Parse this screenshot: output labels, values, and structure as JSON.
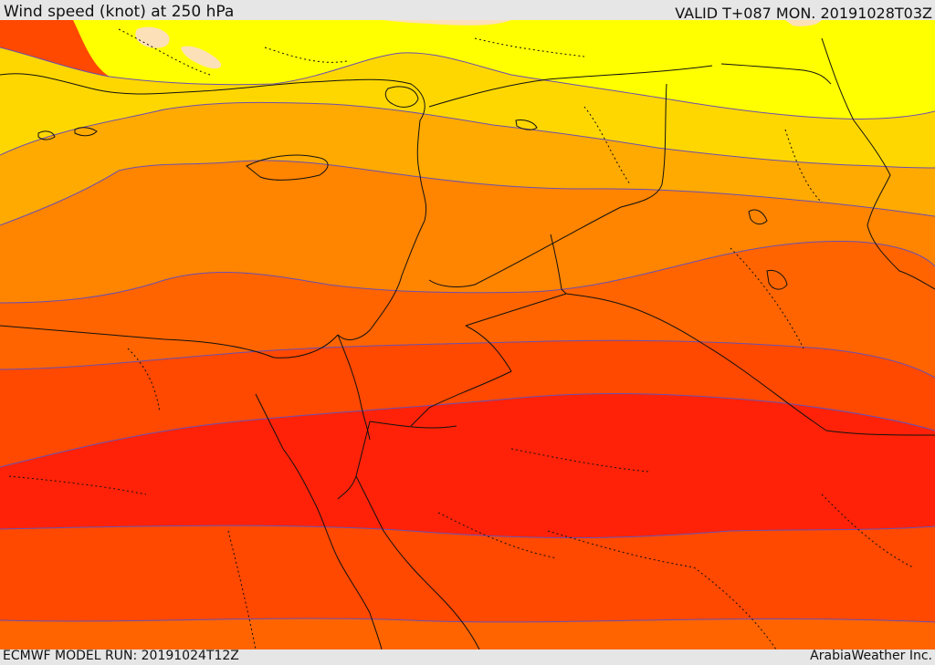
{
  "header": {
    "title": "Wind speed (knot) at 250 hPa",
    "valid": "VALID T+087 MON. 20191028T03Z"
  },
  "footer": {
    "model_run": "ECMWF MODEL RUN: 20191024T12Z",
    "credit": "ArabiaWeather Inc."
  },
  "colors": {
    "band_lightest": "#fce0b8",
    "band_yellow": "#ffff00",
    "band_gold": "#ffd700",
    "band_amber": "#ffaa00",
    "band_orange": "#ff8400",
    "band_dark_orange": "#ff6400",
    "band_red_orange": "#ff4800",
    "band_red": "#ff2208",
    "contour_line": "#6b4fb0",
    "border_line": "#111111"
  }
}
